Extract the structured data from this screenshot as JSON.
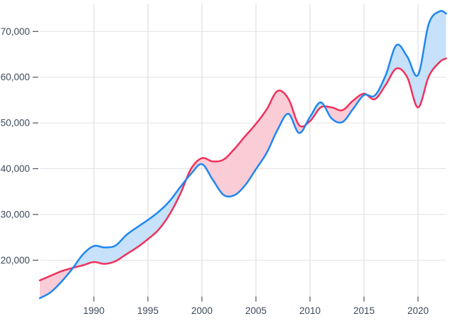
{
  "chart_data": {
    "type": "area",
    "description": "Two smoothed line series with shaded band between them; light blue fill where blue series is above, pink fill where red series is above",
    "x": [
      1985,
      1986,
      1987,
      1988,
      1989,
      1990,
      1991,
      1992,
      1993,
      1994,
      1995,
      1996,
      1997,
      1998,
      1999,
      2000,
      2001,
      2002,
      2003,
      2004,
      2005,
      2006,
      2007,
      2008,
      2009,
      2010,
      2011,
      2012,
      2013,
      2014,
      2015,
      2016,
      2017,
      2018,
      2019,
      2020,
      2021,
      2022,
      2022.6
    ],
    "series": [
      {
        "name": "blue-series",
        "line_color": "#1e87f2",
        "band_color": "#c6e1f9",
        "values": [
          11700,
          13000,
          15300,
          18100,
          21300,
          23100,
          22800,
          23200,
          25500,
          27200,
          28800,
          30600,
          32900,
          36000,
          38900,
          41000,
          37600,
          34300,
          34200,
          36400,
          39900,
          43500,
          48500,
          52000,
          47800,
          51300,
          54500,
          51000,
          50200,
          53100,
          56100,
          56000,
          60400,
          67000,
          64500,
          60500,
          71700,
          74400,
          73900
        ]
      },
      {
        "name": "red-series",
        "line_color": "#f0315c",
        "band_color": "#f9ccd6",
        "values": [
          15600,
          16600,
          17600,
          18300,
          18900,
          19600,
          19200,
          19800,
          21300,
          22800,
          24600,
          26700,
          30000,
          34500,
          40000,
          42300,
          41600,
          42000,
          44300,
          47100,
          49800,
          53000,
          57000,
          55300,
          49500,
          50400,
          53400,
          53400,
          52800,
          54900,
          56400,
          55200,
          58300,
          61900,
          60000,
          53400,
          60200,
          63300,
          64100
        ]
      }
    ],
    "x_ticks": [
      {
        "value": 1990,
        "label": "1990"
      },
      {
        "value": 1995,
        "label": "1995"
      },
      {
        "value": 2000,
        "label": "2000"
      },
      {
        "value": 2005,
        "label": "2005"
      },
      {
        "value": 2010,
        "label": "2010"
      },
      {
        "value": 2015,
        "label": "2015"
      },
      {
        "value": 2020,
        "label": "2020"
      }
    ],
    "y_ticks": [
      {
        "value": 20000,
        "label": "20,000"
      },
      {
        "value": 30000,
        "label": "30,000"
      },
      {
        "value": 40000,
        "label": "40,000"
      },
      {
        "value": 50000,
        "label": "50,000"
      },
      {
        "value": 60000,
        "label": "60,000"
      },
      {
        "value": 70000,
        "label": "70,000"
      }
    ],
    "x_range": [
      1985,
      2022.6
    ],
    "y_range": [
      10900,
      76100
    ],
    "grid": true,
    "legend": "none",
    "title": "",
    "xlabel": "",
    "ylabel": "",
    "colors": {
      "grid_vertical": "#d8d8d8",
      "grid_horizontal": "#e2e2e2",
      "tick_dash": "#55606e",
      "tick_text": "#3d4a5c",
      "background": "#ffffff"
    }
  }
}
